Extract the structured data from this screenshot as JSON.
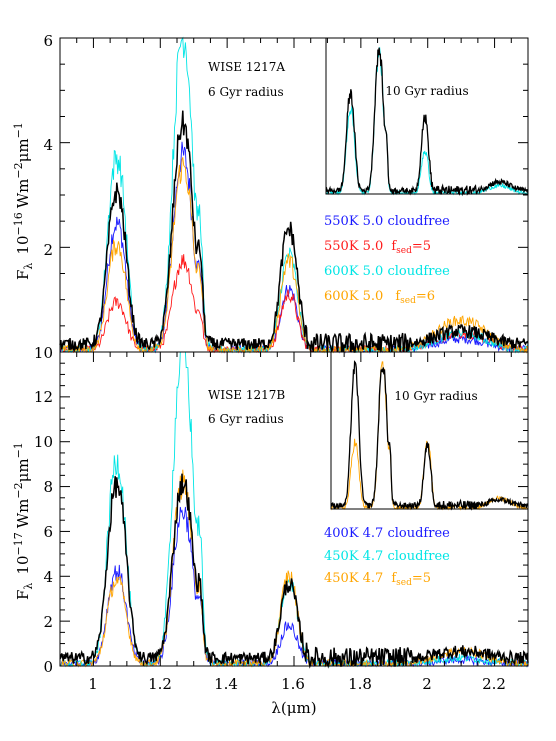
{
  "chart_data": [
    {
      "type": "line",
      "panel": "top",
      "ylabel": "F",
      "ylabel_sub": "λ",
      "ylabel_unit": "10",
      "ylabel_unit_exp": "−16",
      "ylabel_unit_rest": "Wm",
      "ylabel_unit_exp2": "−2",
      "ylabel_unit_rest2": "μm",
      "ylabel_unit_exp3": "−1",
      "xlim": [
        0.9,
        2.3
      ],
      "ylim": [
        0,
        6
      ],
      "yticks": [
        "2",
        "4",
        "6"
      ],
      "top_tick_label": "10",
      "annotation_object": "WISE 1217A",
      "annotation_radius": "6 Gyr radius",
      "inset_label": "10 Gyr radius",
      "legend": [
        {
          "model": "550K 5.0 cloudfree",
          "color": "#1a1aff"
        },
        {
          "model": "550K 5.0",
          "fsed": "5",
          "color": "#ff1a1a"
        },
        {
          "model": "600K 5.0 cloudfree",
          "color": "#00e5e5"
        },
        {
          "model": "600K 5.0",
          "fsed": "6",
          "color": "#ffa500"
        }
      ],
      "series": [
        {
          "name": "observed",
          "color": "#000000",
          "peaks": {
            "Y": 2.9,
            "J": 4.2,
            "H": 2.2,
            "K": 0.25
          }
        },
        {
          "name": "550K 5.0 cloudfree",
          "color": "#1a1aff",
          "peaks": {
            "Y": 2.4,
            "J": 3.7,
            "H": 1.15,
            "K": 0.2
          }
        },
        {
          "name": "550K 5.0 fsed=5",
          "color": "#ff1a1a",
          "peaks": {
            "Y": 0.9,
            "J": 1.7,
            "H": 1.05,
            "K": 0.3
          }
        },
        {
          "name": "600K 5.0 cloudfree",
          "color": "#00e5e5",
          "peaks": {
            "Y": 3.65,
            "J": 6.0,
            "H": 1.8,
            "K": 0.3
          }
        },
        {
          "name": "600K 5.0 fsed=6",
          "color": "#ffa500",
          "peaks": {
            "Y": 2.0,
            "J": 3.5,
            "H": 1.7,
            "K": 0.55
          }
        }
      ]
    },
    {
      "type": "line",
      "panel": "bottom",
      "ylabel": "F",
      "ylabel_sub": "λ",
      "ylabel_unit": "10",
      "ylabel_unit_exp": "−17",
      "ylabel_unit_rest": "Wm",
      "ylabel_unit_exp2": "−2",
      "ylabel_unit_rest2": "μm",
      "ylabel_unit_exp3": "−1",
      "xlabel": "λ(μm)",
      "xlim": [
        0.9,
        2.3
      ],
      "ylim": [
        0,
        14
      ],
      "xticks": [
        "1",
        "1.2",
        "1.4",
        "1.6",
        "1.8",
        "2",
        "2.2"
      ],
      "yticks": [
        "0",
        "2",
        "4",
        "6",
        "8",
        "10",
        "12"
      ],
      "annotation_object": "WISE 1217B",
      "annotation_radius": "6 Gyr radius",
      "inset_label": "10 Gyr radius",
      "legend": [
        {
          "model": "400K 4.7 cloudfree",
          "color": "#1a1aff"
        },
        {
          "model": "450K 4.7 cloudfree",
          "color": "#00e5e5"
        },
        {
          "model": "450K 4.7",
          "fsed": "5",
          "color": "#ffa500"
        }
      ],
      "series": [
        {
          "name": "observed",
          "color": "#000000",
          "peaks": {
            "Y": 7.7,
            "J": 7.8,
            "H": 3.3,
            "K": 0.3
          }
        },
        {
          "name": "400K 4.7 cloudfree",
          "color": "#1a1aff",
          "peaks": {
            "Y": 4.1,
            "J": 6.8,
            "H": 1.7,
            "K": 0.15
          }
        },
        {
          "name": "450K 4.7 cloudfree",
          "color": "#00e5e5",
          "peaks": {
            "Y": 9.0,
            "J": 14.0,
            "H": 3.7,
            "K": 0.25
          }
        },
        {
          "name": "450K 4.7 fsed=5",
          "color": "#ffa500",
          "peaks": {
            "Y": 3.7,
            "J": 8.0,
            "H": 3.9,
            "K": 0.55
          }
        }
      ]
    }
  ]
}
